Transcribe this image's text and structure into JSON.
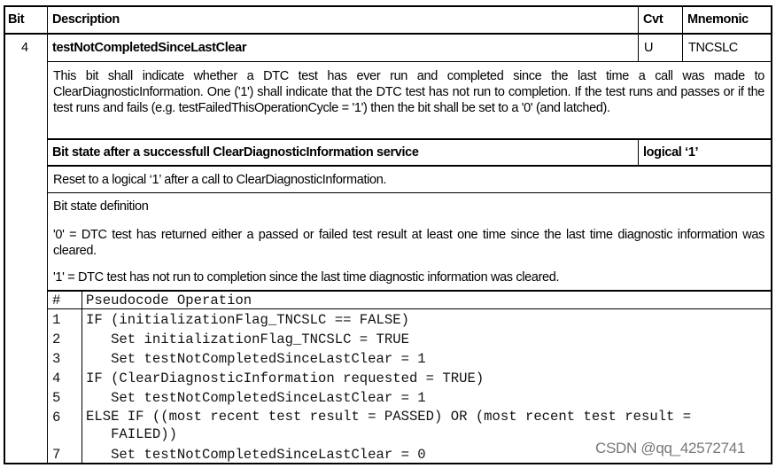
{
  "header": {
    "bit": "Bit",
    "description": "Description",
    "cvt": "Cvt",
    "mnemonic": "Mnemonic"
  },
  "row": {
    "bit": "4",
    "name": "testNotCompletedSinceLastClear",
    "cvt": "U",
    "mnemonic": "TNCSLC"
  },
  "description": "This bit shall indicate whether a DTC test has ever run and completed since the last time a call was made to ClearDiagnosticInformation. One ('1') shall indicate that the DTC test has not run to completion. If the test runs and passes or if the test runs and fails (e.g. testFailedThisOperationCycle = '1') then the bit shall be set to a '0' (and latched).",
  "after_clear": {
    "label": "Bit state after a successfull ClearDiagnosticInformation service",
    "value": "logical ‘1’",
    "text": "Reset to a logical ‘1’ after a call to ClearDiagnosticInformation."
  },
  "definition": {
    "title": "Bit state definition",
    "zero": "'0' = DTC test has returned either a passed or failed test result at least one time since the last time diagnostic information was cleared.",
    "one": "'1' = DTC test has not run to completion since the last time diagnostic information was cleared."
  },
  "pseudocode": {
    "header": {
      "num": "#",
      "op": "Pseudocode Operation"
    },
    "rows": [
      {
        "num": "1",
        "op": "IF (initializationFlag_TNCSLC == FALSE)"
      },
      {
        "num": "2",
        "op": "   Set initializationFlag_TNCSLC = TRUE"
      },
      {
        "num": "3",
        "op": "   Set testNotCompletedSinceLastClear = 1"
      },
      {
        "num": "4",
        "op": "IF (ClearDiagnosticInformation requested = TRUE)"
      },
      {
        "num": "5",
        "op": "   Set testNotCompletedSinceLastClear = 1"
      },
      {
        "num": "6",
        "op": "ELSE IF ((most recent test result = PASSED) OR (most recent test result =\n   FAILED))"
      },
      {
        "num": "7",
        "op": "   Set testNotCompletedSinceLastClear = 0"
      }
    ]
  },
  "watermark": "CSDN @qq_42572741"
}
